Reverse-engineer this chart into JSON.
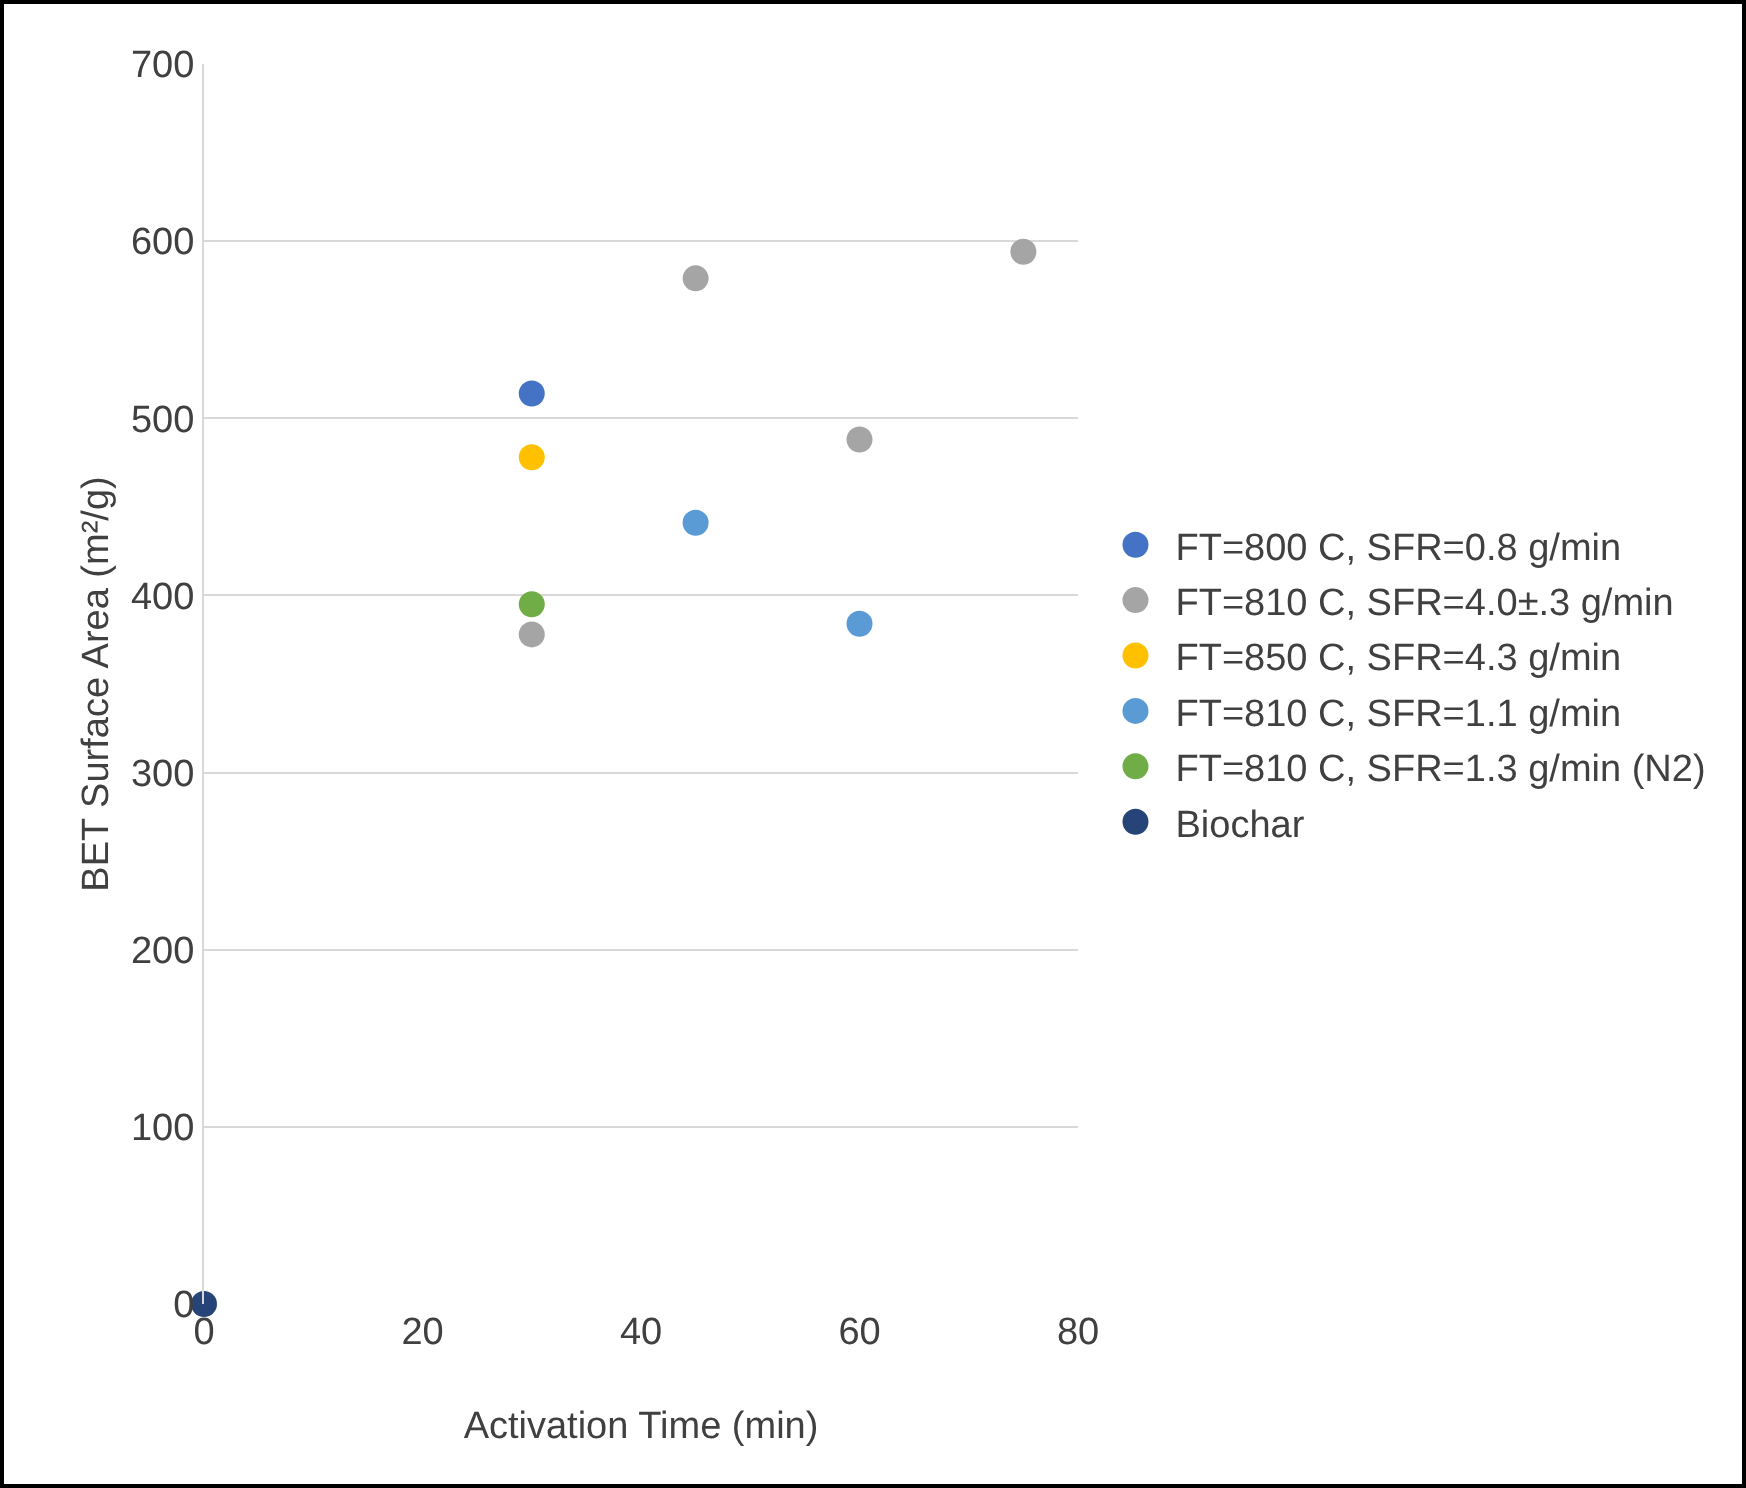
{
  "chart_data": {
    "type": "scatter",
    "xlabel": "Activation Time (min)",
    "ylabel": "BET Surface Area (m²/g)",
    "xlim": [
      0,
      80
    ],
    "xticks": [
      0,
      20,
      40,
      60,
      80
    ],
    "ylim": [
      0,
      700
    ],
    "yticks": [
      0,
      100,
      200,
      300,
      400,
      500,
      600,
      700
    ],
    "grid": "y",
    "legend": "right",
    "marker": "circle",
    "series": [
      {
        "name": "FT=800 C, SFR=0.8 g/min",
        "color": "#4472c4",
        "x": [
          30
        ],
        "values": [
          514
        ]
      },
      {
        "name": "FT=810 C, SFR=4.0±.3 g/min",
        "color": "#a5a5a5",
        "x": [
          30,
          45,
          60,
          75
        ],
        "values": [
          378,
          579,
          488,
          594
        ]
      },
      {
        "name": "FT=850 C, SFR=4.3 g/min",
        "color": "#ffc000",
        "x": [
          30
        ],
        "values": [
          478
        ]
      },
      {
        "name": "FT=810 C, SFR=1.1 g/min",
        "color": "#5b9bd5",
        "x": [
          45,
          60
        ],
        "values": [
          441,
          384
        ]
      },
      {
        "name": "FT=810 C, SFR=1.3 g/min (N2)",
        "color": "#70ad47",
        "x": [
          30
        ],
        "values": [
          395
        ]
      },
      {
        "name": "Biochar",
        "color": "#264478",
        "x": [
          0
        ],
        "values": [
          0
        ]
      }
    ]
  }
}
